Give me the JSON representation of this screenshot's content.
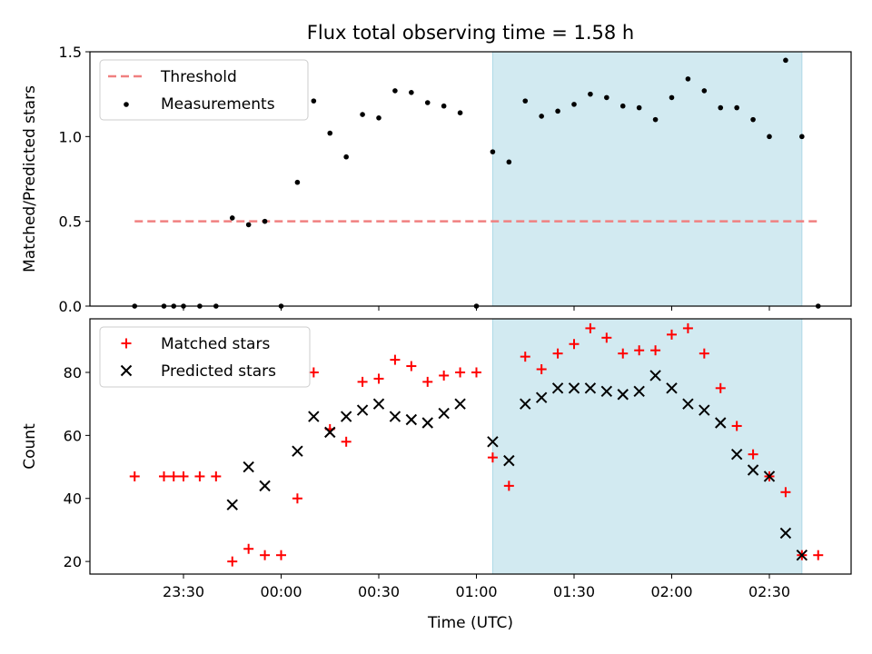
{
  "title": "Flux total observing time = 1.58 h",
  "xlabel": "Time (UTC)",
  "x_ticks": [
    "23:30",
    "00:00",
    "00:30",
    "01:00",
    "01:30",
    "02:00",
    "02:30"
  ],
  "colors": {
    "threshold": "#f08080",
    "measurements": "#000000",
    "matched": "#ff0000",
    "predicted": "#000000",
    "span": "#add8e6"
  },
  "chart_data": [
    {
      "type": "scatter",
      "panel": "top",
      "ylabel": "Matched/Predicted stars",
      "ylim": [
        0,
        1.5
      ],
      "yticks": [
        "0.0",
        "0.5",
        "1.0",
        "1.5"
      ],
      "shaded_span": [
        "01:05",
        "02:40"
      ],
      "legend": {
        "placement": "upper-left",
        "entries": [
          "Threshold",
          "Measurements"
        ]
      },
      "threshold": {
        "name": "Threshold",
        "y": 0.5,
        "x_range": [
          "23:15",
          "02:45"
        ]
      },
      "series": [
        {
          "name": "Measurements",
          "x": [
            "23:15",
            "23:24",
            "23:27",
            "23:30",
            "23:35",
            "23:40",
            "23:45",
            "23:50",
            "23:55",
            "00:00",
            "00:05",
            "00:10",
            "00:15",
            "00:20",
            "00:25",
            "00:30",
            "00:35",
            "00:40",
            "00:45",
            "00:50",
            "00:55",
            "01:00",
            "01:05",
            "01:10",
            "01:15",
            "01:20",
            "01:25",
            "01:30",
            "01:35",
            "01:40",
            "01:45",
            "01:50",
            "01:55",
            "02:00",
            "02:05",
            "02:10",
            "02:15",
            "02:20",
            "02:25",
            "02:30",
            "02:35",
            "02:40",
            "02:45"
          ],
          "y": [
            0.0,
            0.0,
            0.0,
            0.0,
            0.0,
            0.0,
            0.52,
            0.48,
            0.5,
            0.0,
            0.73,
            1.21,
            1.02,
            0.88,
            1.13,
            1.11,
            1.27,
            1.26,
            1.2,
            1.18,
            1.14,
            0.0,
            0.91,
            0.85,
            1.21,
            1.12,
            1.15,
            1.19,
            1.25,
            1.23,
            1.18,
            1.17,
            1.1,
            1.23,
            1.34,
            1.27,
            1.17,
            1.17,
            1.1,
            1.0,
            1.45,
            1.0,
            0.0
          ]
        }
      ]
    },
    {
      "type": "scatter",
      "panel": "bottom",
      "ylabel": "Count",
      "ylim": [
        16,
        97
      ],
      "yticks": [
        "20",
        "40",
        "60",
        "80"
      ],
      "shaded_span": [
        "01:05",
        "02:40"
      ],
      "legend": {
        "placement": "upper-left",
        "entries": [
          "Matched stars",
          "Predicted stars"
        ]
      },
      "series": [
        {
          "name": "Matched stars",
          "marker": "plus",
          "x": [
            "23:15",
            "23:24",
            "23:27",
            "23:30",
            "23:35",
            "23:40",
            "23:45",
            "23:50",
            "23:55",
            "00:00",
            "00:05",
            "00:10",
            "00:15",
            "00:20",
            "00:25",
            "00:30",
            "00:35",
            "00:40",
            "00:45",
            "00:50",
            "00:55",
            "01:00",
            "01:05",
            "01:10",
            "01:15",
            "01:20",
            "01:25",
            "01:30",
            "01:35",
            "01:40",
            "01:45",
            "01:50",
            "01:55",
            "02:00",
            "02:05",
            "02:10",
            "02:15",
            "02:20",
            "02:25",
            "02:30",
            "02:35",
            "02:40",
            "02:45"
          ],
          "y": [
            47,
            47,
            47,
            47,
            47,
            47,
            20,
            24,
            22,
            22,
            40,
            80,
            62,
            58,
            77,
            78,
            84,
            82,
            77,
            79,
            80,
            80,
            53,
            44,
            85,
            81,
            86,
            89,
            94,
            91,
            86,
            87,
            87,
            92,
            94,
            86,
            75,
            63,
            54,
            47,
            42,
            22,
            22
          ]
        },
        {
          "name": "Predicted stars",
          "marker": "x",
          "x": [
            "23:45",
            "23:50",
            "23:55",
            "00:05",
            "00:10",
            "00:15",
            "00:20",
            "00:25",
            "00:30",
            "00:35",
            "00:40",
            "00:45",
            "00:50",
            "00:55",
            "01:05",
            "01:10",
            "01:15",
            "01:20",
            "01:25",
            "01:30",
            "01:35",
            "01:40",
            "01:45",
            "01:50",
            "01:55",
            "02:00",
            "02:05",
            "02:10",
            "02:15",
            "02:20",
            "02:25",
            "02:30",
            "02:35",
            "02:40"
          ],
          "y": [
            38,
            50,
            44,
            55,
            66,
            61,
            66,
            68,
            70,
            66,
            65,
            64,
            67,
            70,
            58,
            52,
            70,
            72,
            75,
            75,
            75,
            74,
            73,
            74,
            79,
            75,
            70,
            68,
            64,
            54,
            49,
            47,
            29,
            22
          ]
        }
      ]
    }
  ]
}
